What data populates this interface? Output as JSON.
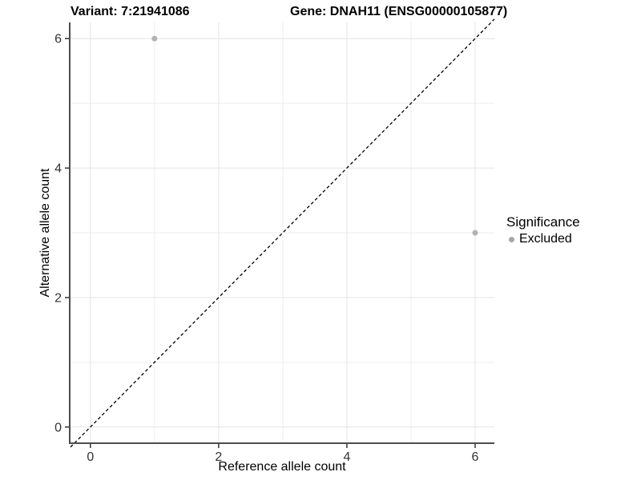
{
  "chart_data": {
    "type": "scatter",
    "title_left": "Variant: 7:21941086",
    "title_right": "Gene: DNAH11 (ENSG00000105877)",
    "xlabel": "Reference allele count",
    "ylabel": "Alternative allele count",
    "xlim": [
      -0.31,
      6.3
    ],
    "ylim": [
      -0.25,
      6.25
    ],
    "x_ticks": [
      0,
      2,
      4,
      6
    ],
    "y_ticks": [
      0,
      2,
      4,
      6
    ],
    "x_minor_ticks": [
      1,
      3,
      5
    ],
    "y_minor_ticks": [
      1,
      3,
      5
    ],
    "grid": true,
    "identity_line": {
      "style": "dashed",
      "color": "#000000",
      "from": -0.31,
      "to": 6.3
    },
    "series": [
      {
        "name": "Excluded",
        "color": "#b3b3b3",
        "points": [
          {
            "x": 1,
            "y": 6
          },
          {
            "x": 6,
            "y": 3
          }
        ]
      }
    ],
    "legend": {
      "title": "Significance",
      "position": "right",
      "entries": [
        {
          "label": "Excluded",
          "color": "#a6a6a6"
        }
      ]
    },
    "colors": {
      "axis_line": "#4d4d4d",
      "tick_mark": "#333333",
      "tick_label": "#333333",
      "grid_major": "#e4e4e4",
      "grid_minor": "#eeeeee",
      "background": "#ffffff"
    }
  }
}
